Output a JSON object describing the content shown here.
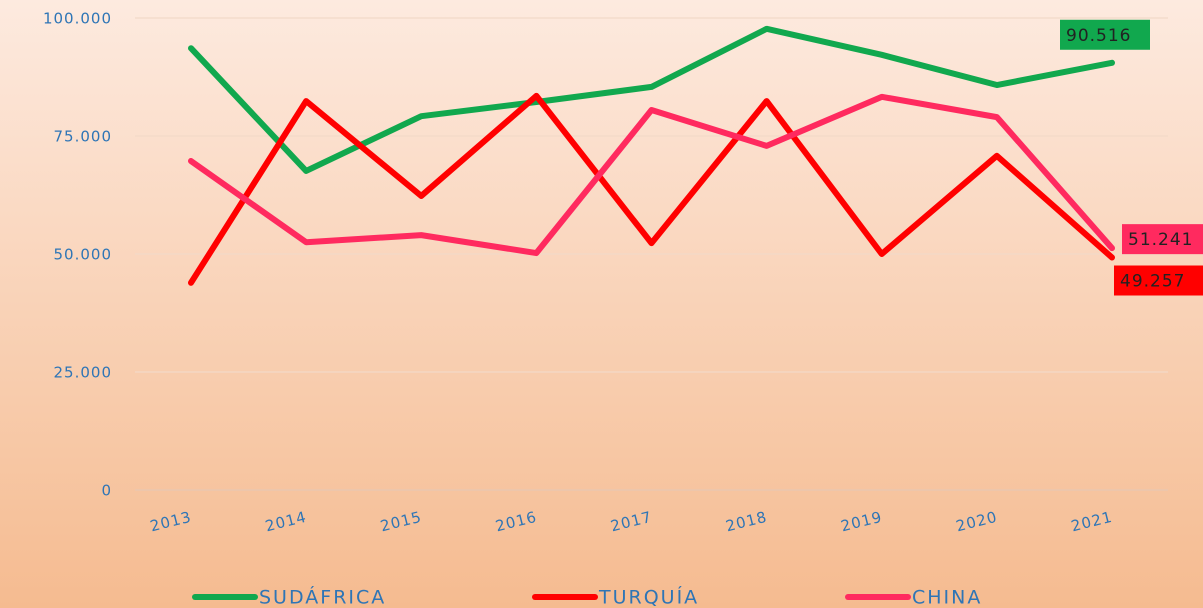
{
  "chart_data": {
    "type": "line",
    "categories": [
      "2013",
      "2014",
      "2015",
      "2016",
      "2017",
      "2018",
      "2019",
      "2020",
      "2021"
    ],
    "series": [
      {
        "name": "SUDÁFRICA",
        "color": "#11a84e",
        "values": [
          93600,
          67600,
          79200,
          82200,
          85400,
          97700,
          92200,
          85800,
          90516
        ],
        "value_labels": [
          null,
          null,
          null,
          null,
          null,
          null,
          null,
          null,
          "90.516"
        ]
      },
      {
        "name": "TURQUÍA",
        "color": "#ff0000",
        "values": [
          43900,
          82400,
          62300,
          83500,
          52300,
          82400,
          50000,
          70800,
          49257
        ],
        "value_labels": [
          null,
          null,
          null,
          null,
          null,
          null,
          null,
          null,
          "49.257"
        ]
      },
      {
        "name": "CHINA",
        "color": "#ff2a5f",
        "values": [
          69700,
          52500,
          54000,
          50200,
          80500,
          72900,
          83300,
          79000,
          51241
        ],
        "value_labels": [
          null,
          null,
          null,
          null,
          null,
          null,
          null,
          null,
          "51.241"
        ]
      }
    ],
    "ylim": [
      0,
      100000
    ],
    "yticks": [
      0,
      {
        "value": 25000,
        "label": "25.000"
      },
      {
        "value": 50000,
        "label": "50.000"
      },
      {
        "value": 75000,
        "label": "75.000"
      },
      {
        "value": 100000,
        "label": "100.000"
      }
    ],
    "grid": true
  }
}
